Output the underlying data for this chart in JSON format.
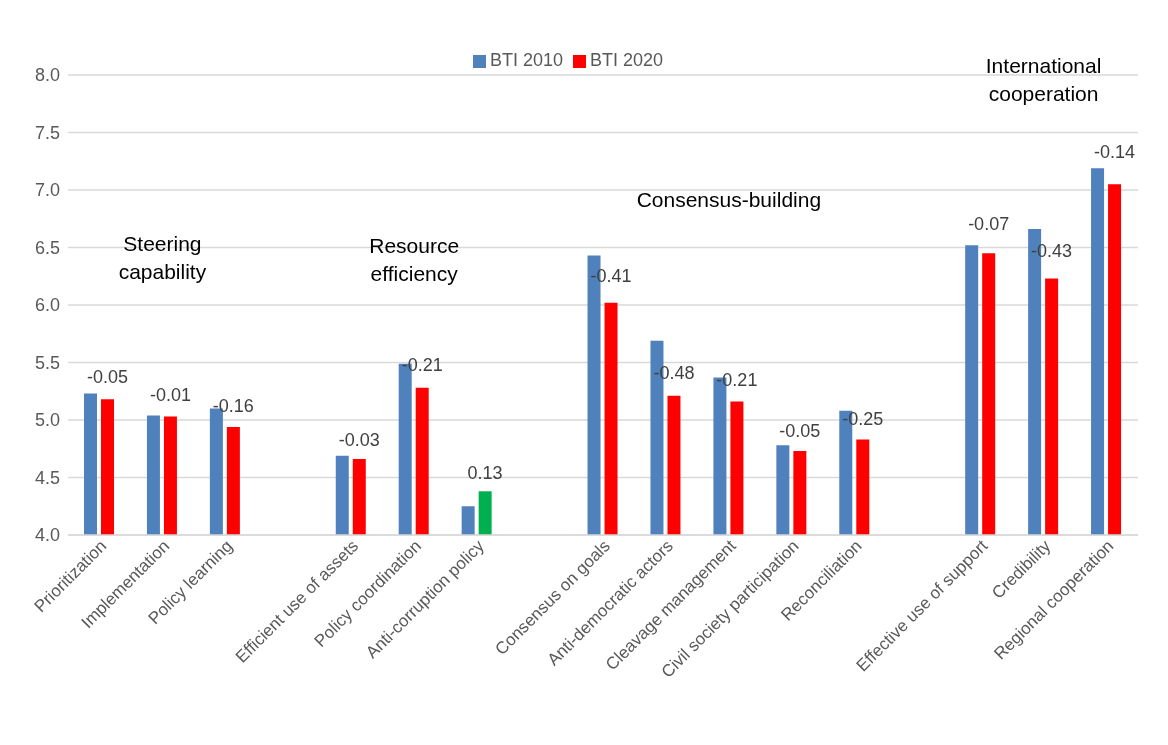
{
  "chart_data": {
    "type": "bar",
    "categories": [
      "Prioritization",
      "Implementation",
      "Policy learning",
      null,
      "Efficient use of assets",
      "Policy coordination",
      "Anti-corruption policy",
      null,
      "Consensus on goals",
      "Anti-democratic actors",
      "Cleavage management",
      "Civil society participation",
      "Reconciliation",
      null,
      "Effective use of support",
      "Credibility",
      "Regional cooperation"
    ],
    "series": [
      {
        "name": "BTI 2010",
        "color": "#4f81bd",
        "values": [
          5.23,
          5.04,
          5.1,
          null,
          4.69,
          5.49,
          4.25,
          null,
          6.43,
          5.69,
          5.37,
          4.78,
          5.08,
          null,
          6.52,
          6.66,
          7.19
        ]
      },
      {
        "name": "BTI 2020",
        "color": "#ff0000",
        "colors": [
          "#ff0000",
          "#ff0000",
          "#ff0000",
          null,
          "#ff0000",
          "#ff0000",
          "#00b050",
          null,
          "#ff0000",
          "#ff0000",
          "#ff0000",
          "#ff0000",
          "#ff0000",
          null,
          "#ff0000",
          "#ff0000",
          "#ff0000"
        ],
        "values": [
          5.18,
          5.03,
          4.94,
          null,
          4.66,
          5.28,
          4.38,
          null,
          6.02,
          5.21,
          5.16,
          4.73,
          4.83,
          null,
          6.45,
          6.23,
          7.05
        ]
      }
    ],
    "ylim": [
      4.0,
      8.0
    ],
    "yticks": [
      {
        "value": 4,
        "label": "4.0"
      },
      {
        "value": 4.5,
        "label": "4.5"
      },
      {
        "value": 5,
        "label": "5.0"
      },
      {
        "value": 5.5,
        "label": "5.5"
      },
      {
        "value": 6,
        "label": "6.0"
      },
      {
        "value": 6.5,
        "label": "6.5"
      },
      {
        "value": 7,
        "label": "7.0"
      },
      {
        "value": 7.5,
        "label": "7.5"
      },
      {
        "value": 8,
        "label": "8.0"
      }
    ],
    "grid": "y",
    "legend": "top",
    "annotations": [
      "Steering\ncapability",
      "Resource\nefficiency",
      "Consensus-building",
      "International\ncooperation",
      {
        "text": "-0.05",
        "x": "Prioritization",
        "y": 5.18
      },
      {
        "text": "-0.01",
        "x": "Implementation",
        "y": 5.03
      },
      {
        "text": "-0.16",
        "x": "Policy learning",
        "y": 4.94
      },
      {
        "text": "-0.03",
        "x": "Efficient use of assets",
        "y": 4.66
      },
      {
        "text": "-0.21",
        "x": "Policy coordination",
        "y": 5.28
      },
      {
        "text": "0.13",
        "x": "Anti-corruption policy",
        "y": 4.38
      },
      {
        "text": "-0.41",
        "x": "Consensus on goals",
        "y": 6.02
      },
      {
        "text": "-0.48",
        "x": "Anti-democratic actors",
        "y": 5.21
      },
      {
        "text": "-0.21",
        "x": "Cleavage management",
        "y": 5.16
      },
      {
        "text": "-0.05",
        "x": "Civil society participation",
        "y": 4.73
      },
      {
        "text": "-0.25",
        "x": "Reconciliation",
        "y": 4.83
      },
      {
        "text": "-0.07",
        "x": "Effective use of support",
        "y": 6.45
      },
      {
        "text": "-0.43",
        "x": "Credibility",
        "y": 6.23
      },
      {
        "text": "-0.14",
        "x": "Regional cooperation",
        "y": 7.05
      }
    ]
  }
}
